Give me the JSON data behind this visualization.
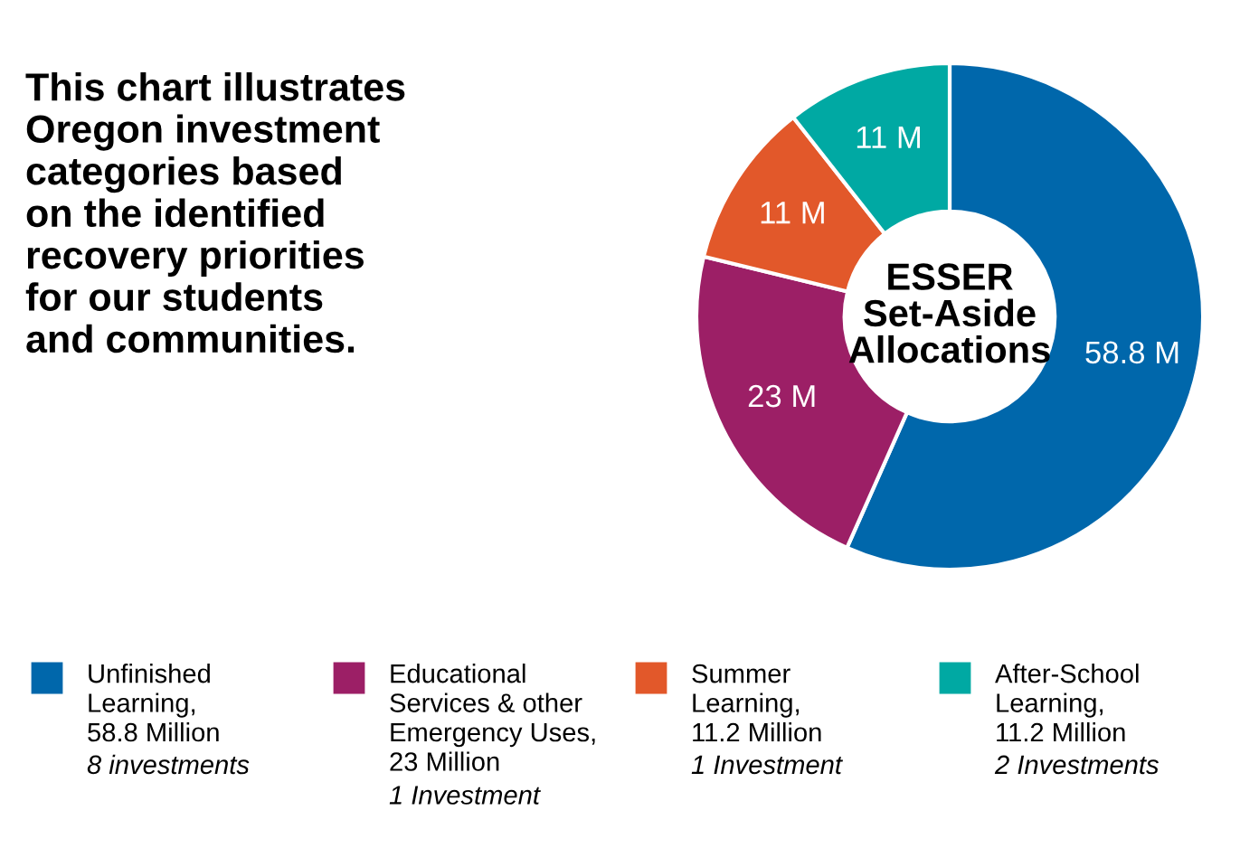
{
  "chart_data": {
    "type": "donut",
    "title": "ESSER\nSet-Aside\nAllocations",
    "subtitle": "This chart illustrates\nOregon investment\ncategories based\non the identified\nrecovery priorities\nfor our students\nand communities.",
    "categories": [
      "Unfinished\nLearning,\n58.8 Million",
      "Educational\nServices & other\nEmergency Uses,\n23 Million",
      "Summer\nLearning,\n11.2 Million",
      "After-School\nLearning,\n11.2 Million"
    ],
    "values": [
      58.8,
      23,
      11,
      11
    ],
    "value_labels": [
      "58.8 M",
      "23 M",
      "11 M",
      "11 M"
    ],
    "colors": [
      "#0067ab",
      "#9c1f66",
      "#e2582a",
      "#00a9a3"
    ],
    "annotations": [
      "8 investments",
      "1 Investment",
      "1 Investment",
      "2 Investments"
    ],
    "legend": "bottom"
  }
}
